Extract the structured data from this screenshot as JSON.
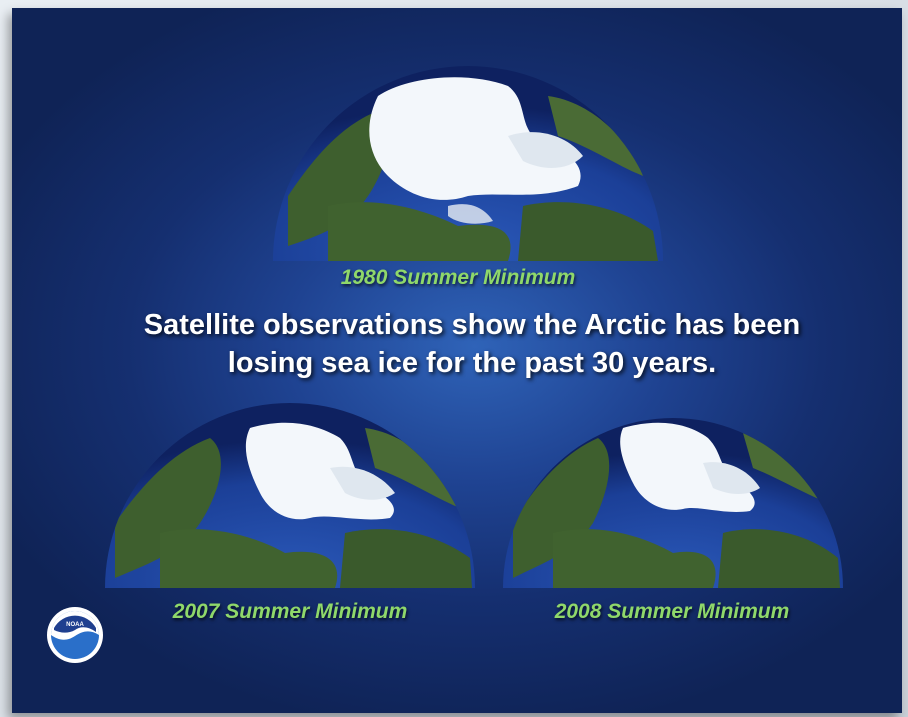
{
  "headline": {
    "line1": "Satellite observations show the Arctic has been",
    "line2": "losing sea ice for the past 30 years."
  },
  "maps": [
    {
      "caption": "1980 Summer Minimum",
      "ice_extent": "large"
    },
    {
      "caption": "2007 Summer Minimum",
      "ice_extent": "reduced"
    },
    {
      "caption": "2008 Summer Minimum",
      "ice_extent": "reduced"
    }
  ],
  "logo": {
    "icon": "noaa-logo-icon",
    "text": "NOAA"
  },
  "colors": {
    "background": "#1f4392",
    "caption": "#8fd86a",
    "ocean": "#1b3f97",
    "land": "#3e5f2e",
    "ice": "#f3f7fb"
  }
}
